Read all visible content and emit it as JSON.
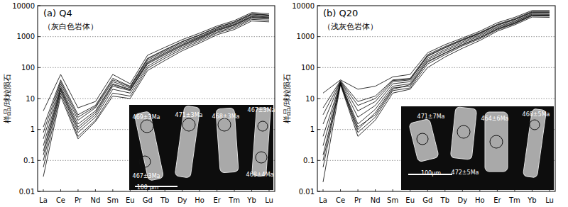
{
  "chart_data": [
    {
      "type": "line",
      "title": "(a)  Q4",
      "subtitle": "（灰白色岩体）",
      "ylabel": "样品/球粒陨石",
      "categories": [
        "La",
        "Ce",
        "Pr",
        "Nd",
        "Sm",
        "Eu",
        "Gd",
        "Tb",
        "Dy",
        "Ho",
        "Er",
        "Tm",
        "Yb",
        "Lu"
      ],
      "log": "y",
      "grid": true,
      "ylim": [
        0.01,
        10000
      ],
      "yticks": [
        0.01,
        0.1,
        1,
        10,
        100,
        1000,
        10000
      ],
      "annotations": [
        "469±3Ma",
        "471±3Ma",
        "468±3Ma",
        "467±3Ma",
        "467±3Ma",
        "468±4Ma",
        "100 μm"
      ],
      "series": [
        {
          "color": "#000000",
          "values": [
            4,
            60,
            5,
            8,
            60,
            30,
            250,
            450,
            800,
            1300,
            2200,
            3300,
            6000,
            5500
          ]
        },
        {
          "color": "#000000",
          "values": [
            1.2,
            40,
            3,
            6,
            45,
            25,
            200,
            380,
            700,
            1150,
            2000,
            3000,
            5500,
            5000
          ]
        },
        {
          "color": "#000000",
          "values": [
            0.5,
            30,
            2,
            5,
            35,
            22,
            170,
            330,
            620,
            1000,
            1800,
            2700,
            5000,
            4600
          ]
        },
        {
          "color": "#000000",
          "values": [
            0.3,
            25,
            1.5,
            4,
            30,
            20,
            150,
            300,
            560,
            950,
            1700,
            2500,
            4600,
            4300
          ]
        },
        {
          "color": "#000000",
          "values": [
            0.15,
            20,
            1,
            3,
            25,
            18,
            130,
            260,
            500,
            850,
            1550,
            2300,
            4200,
            4000
          ]
        },
        {
          "color": "#000000",
          "values": [
            0.1,
            18,
            0.8,
            2.5,
            20,
            15,
            110,
            230,
            450,
            780,
            1400,
            2100,
            3900,
            3700
          ]
        },
        {
          "color": "#000000",
          "values": [
            0.06,
            15,
            0.6,
            2,
            15,
            12,
            95,
            200,
            400,
            700,
            1300,
            1900,
            3600,
            3400
          ]
        },
        {
          "color": "#000000",
          "values": [
            0.03,
            12,
            0.5,
            1.8,
            12,
            10,
            80,
            170,
            350,
            620,
            1150,
            1700,
            3200,
            3000
          ]
        },
        {
          "color": "#000000",
          "values": [
            0.8,
            35,
            2.5,
            5.5,
            40,
            24,
            190,
            360,
            680,
            1100,
            1950,
            2900,
            5300,
            4900
          ]
        },
        {
          "color": "#000000",
          "values": [
            0.2,
            22,
            1.2,
            3.5,
            28,
            19,
            140,
            280,
            530,
            900,
            1600,
            2400,
            4400,
            4100
          ]
        }
      ]
    },
    {
      "type": "line",
      "title": "(b)  Q20",
      "subtitle": "（浅灰色岩体）",
      "ylabel": "样品/球粒陨石",
      "categories": [
        "La",
        "Ce",
        "Pr",
        "Nd",
        "Sm",
        "Eu",
        "Gd",
        "Tb",
        "Dy",
        "Ho",
        "Er",
        "Tm",
        "Yb",
        "Lu"
      ],
      "log": "y",
      "grid": true,
      "ylim": [
        0.01,
        10000
      ],
      "yticks": [
        0.01,
        0.1,
        1,
        10,
        100,
        1000,
        10000
      ],
      "annotations": [
        "471±7Ma",
        "464±6Ma",
        "468±5Ma",
        "472±5Ma",
        "100μm"
      ],
      "series": [
        {
          "color": "#000000",
          "values": [
            15,
            40,
            20,
            25,
            50,
            60,
            300,
            550,
            900,
            1500,
            2800,
            4200,
            7000,
            7000
          ]
        },
        {
          "color": "#000000",
          "values": [
            5,
            38,
            8,
            12,
            40,
            45,
            260,
            480,
            820,
            1350,
            2500,
            3800,
            6500,
            6500
          ]
        },
        {
          "color": "#000000",
          "values": [
            1.5,
            35,
            4,
            8,
            35,
            40,
            230,
            430,
            750,
            1250,
            2300,
            3500,
            6000,
            6000
          ]
        },
        {
          "color": "#000000",
          "values": [
            0.6,
            33,
            2.5,
            6,
            30,
            35,
            200,
            380,
            680,
            1150,
            2100,
            3200,
            5600,
            5600
          ]
        },
        {
          "color": "#000000",
          "values": [
            0.3,
            32,
            1.5,
            4.5,
            25,
            30,
            180,
            340,
            620,
            1050,
            1950,
            3000,
            5300,
            5200
          ]
        },
        {
          "color": "#000000",
          "values": [
            0.15,
            30,
            1,
            3.5,
            22,
            25,
            160,
            300,
            560,
            950,
            1800,
            2800,
            5000,
            4900
          ]
        },
        {
          "color": "#000000",
          "values": [
            0.06,
            30,
            0.8,
            2.5,
            18,
            22,
            130,
            260,
            500,
            850,
            1650,
            2600,
            4700,
            4600
          ]
        },
        {
          "color": "#000000",
          "values": [
            0.02,
            28,
            0.6,
            2,
            15,
            20,
            100,
            220,
            420,
            750,
            1500,
            2400,
            4300,
            4200
          ]
        },
        {
          "color": "#000000",
          "values": [
            0.1,
            31,
            1.2,
            3,
            20,
            28,
            150,
            290,
            540,
            920,
            1750,
            2700,
            4900,
            4800
          ]
        },
        {
          "color": "#000000",
          "values": [
            3,
            36,
            6,
            10,
            38,
            42,
            240,
            450,
            780,
            1300,
            2400,
            3600,
            6200,
            6200
          ]
        }
      ]
    }
  ]
}
